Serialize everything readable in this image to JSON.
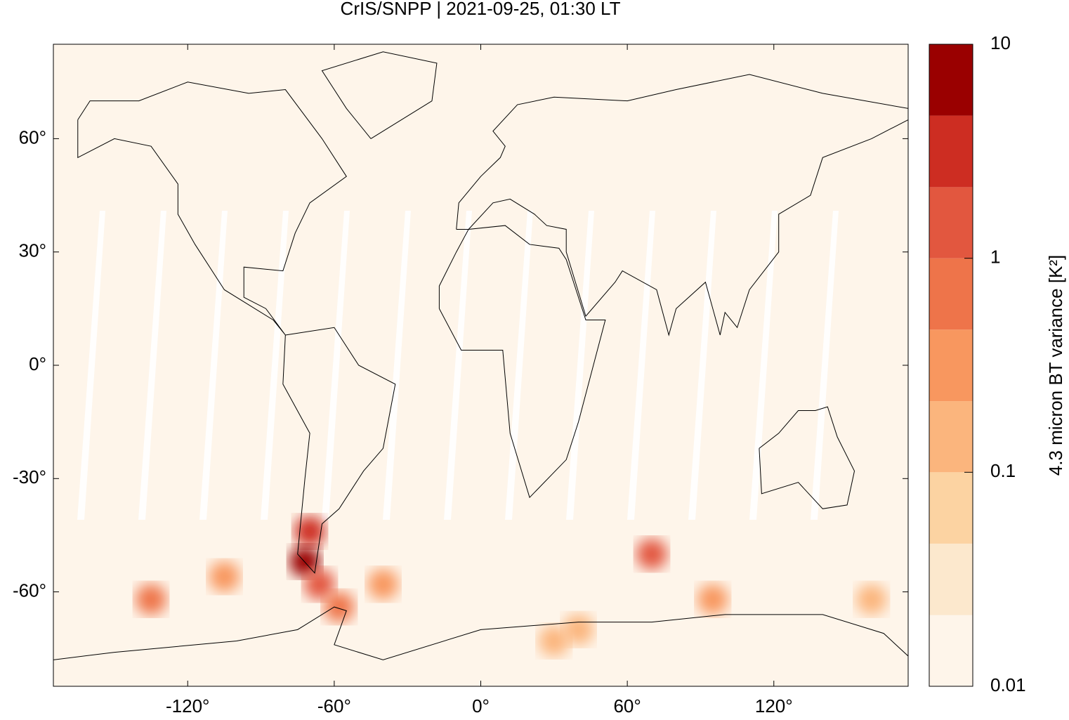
{
  "chart_data": {
    "type": "map",
    "title": "CrIS/SNPP | 2021-09-25, 01:30 LT",
    "xlim": [
      -175,
      175
    ],
    "ylim": [
      -85,
      85
    ],
    "xticks": [
      {
        "value": -120,
        "label": "-120°"
      },
      {
        "value": -60,
        "label": "-60°"
      },
      {
        "value": 0,
        "label": "0°"
      },
      {
        "value": 60,
        "label": "60°"
      },
      {
        "value": 120,
        "label": "120°"
      }
    ],
    "yticks": [
      {
        "value": 60,
        "label": "60°"
      },
      {
        "value": 30,
        "label": "30°"
      },
      {
        "value": 0,
        "label": "0°"
      },
      {
        "value": -30,
        "label": "-30°"
      },
      {
        "value": -60,
        "label": "-60°"
      }
    ],
    "x": [
      -70,
      -72,
      -66,
      -135,
      -105,
      -58,
      70,
      95,
      40,
      -40,
      30,
      160
    ],
    "y": [
      -44,
      -52,
      -58,
      -62,
      -56,
      -64,
      -50,
      -62,
      -70,
      -58,
      -73,
      -62
    ],
    "values": [
      3,
      5,
      2,
      0.8,
      0.4,
      0.6,
      2,
      0.3,
      0.15,
      0.3,
      0.1,
      0.1
    ],
    "colorbar": {
      "label": "4.3 micron BT variance [K²]",
      "log": true,
      "lim": [
        0.01,
        10
      ],
      "ticks": [
        0.01,
        0.1,
        1,
        10
      ],
      "levels": [
        0.01,
        0.0215,
        0.0464,
        0.1,
        0.215,
        0.464,
        1,
        2.15,
        4.64,
        10
      ],
      "colors": [
        "#fef5ea",
        "#fce8cd",
        "#fcd3a2",
        "#fbb57d",
        "#f8975f",
        "#ee744a",
        "#e2573f",
        "#cd2d22",
        "#9a0000"
      ]
    }
  }
}
